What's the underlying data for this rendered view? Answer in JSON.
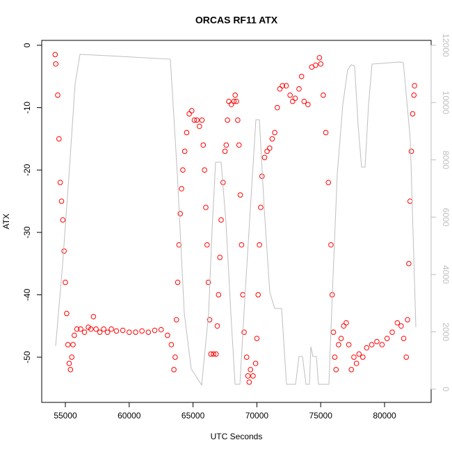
{
  "chart_data": {
    "type": "scatter",
    "title": "ORCAS RF11 ATX",
    "xlabel": "UTC Seconds",
    "ylabel": "ATX",
    "xlim": [
      53148,
      83649
    ],
    "ylim": [
      -57.25,
      0.78
    ],
    "y2lim": [
      -461,
      12170
    ],
    "xticks": [
      55000,
      60000,
      65000,
      70000,
      75000,
      80000
    ],
    "yticks": [
      -50,
      -40,
      -30,
      -20,
      -10,
      0
    ],
    "y2ticks": [
      0,
      2000,
      4000,
      6000,
      8000,
      10000,
      12000
    ],
    "series": [
      {
        "type": "scatter",
        "color": "#ff0000",
        "x": [
          54200,
          54250,
          54400,
          54500,
          54600,
          54700,
          54800,
          54900,
          55000,
          55100,
          55200,
          55300,
          55400,
          55500,
          55600,
          55700,
          55900,
          56200,
          56500,
          56800,
          57000,
          57200,
          57400,
          57700,
          58000,
          58300,
          58600,
          59000,
          59500,
          60000,
          60500,
          61000,
          61500,
          62000,
          62500,
          63000,
          63300,
          63500,
          63600,
          63700,
          63800,
          63900,
          64000,
          64100,
          64200,
          64350,
          64500,
          64700,
          64900,
          65100,
          65300,
          65500,
          65700,
          65800,
          65900,
          66000,
          66100,
          66200,
          66300,
          66400,
          66600,
          66800,
          66900,
          67000,
          67100,
          67200,
          67350,
          67500,
          67600,
          67700,
          67800,
          68000,
          68200,
          68300,
          68400,
          68500,
          68600,
          68700,
          68800,
          68900,
          69000,
          69200,
          69300,
          69400,
          69500,
          69700,
          69900,
          70000,
          70100,
          70200,
          70300,
          70400,
          70600,
          70800,
          71000,
          71200,
          71400,
          71600,
          71800,
          72000,
          72300,
          72600,
          72800,
          73000,
          73300,
          73500,
          73700,
          74000,
          74300,
          74600,
          74900,
          75000,
          75200,
          75400,
          75600,
          75800,
          75900,
          76000,
          76100,
          76200,
          76400,
          76600,
          76800,
          77000,
          77200,
          77400,
          77600,
          77800,
          78000,
          78300,
          78600,
          79000,
          79400,
          79800,
          80200,
          80600,
          81000,
          81300,
          81500,
          81700,
          81800,
          81900,
          82000,
          82100,
          82200,
          82300,
          82350
        ],
        "values": [
          -1.5,
          -3,
          -8,
          -15,
          -22,
          -25,
          -28,
          -33,
          -38,
          -43,
          -48,
          -51,
          -52,
          -50,
          -48,
          -46.5,
          -45.5,
          -45.5,
          -46,
          -45.2,
          -45.5,
          -43.5,
          -45.5,
          -46,
          -45.5,
          -46,
          -45.5,
          -45.8,
          -45.7,
          -46,
          -46,
          -45.8,
          -46,
          -45.7,
          -45.6,
          -46.5,
          -48,
          -52,
          -50,
          -44,
          -38,
          -32,
          -27,
          -23,
          -20,
          -17,
          -14,
          -11,
          -10.5,
          -12,
          -12,
          -13,
          -12,
          -16,
          -20,
          -26,
          -32,
          -38,
          -44,
          -49.5,
          -49.5,
          -49.5,
          -45,
          -40,
          -34,
          -28,
          -22,
          -17,
          -16,
          -12,
          -9,
          -9.5,
          -9,
          -8,
          -9,
          -12,
          -16,
          -24,
          -32,
          -40,
          -46,
          -50,
          -53,
          -54,
          -52,
          -53,
          -51,
          -47,
          -40,
          -32,
          -26,
          -21,
          -18,
          -17,
          -16.5,
          -15,
          -14,
          -10,
          -7,
          -6.5,
          -6.5,
          -8,
          -9,
          -8.5,
          -7,
          -5,
          -9,
          -9.5,
          -3.5,
          -3.2,
          -2,
          -3,
          -8,
          -14,
          -22,
          -32,
          -40,
          -46,
          -50,
          -52,
          -48,
          -47,
          -45,
          -44.5,
          -48,
          -52,
          -50,
          -51,
          -49.5,
          -50,
          -48.5,
          -48,
          -47.5,
          -48,
          -47,
          -46,
          -44.5,
          -45,
          -47,
          -50,
          -44,
          -35,
          -25,
          -17,
          -11,
          -8,
          -6.5
        ]
      },
      {
        "type": "line",
        "axis": "y2",
        "color": "#bebebe",
        "x": [
          54237,
          54782,
          55327,
          55763,
          56144,
          58322,
          63224,
          63769,
          64314,
          64858,
          65675,
          66220,
          66492,
          66765,
          67200,
          67582,
          67963,
          68290,
          68671,
          69052,
          69488,
          69924,
          70196,
          70577,
          71013,
          71394,
          71939,
          72320,
          73028,
          73300,
          73572,
          73845,
          74117,
          74226,
          74390,
          74662,
          74825,
          75642,
          75915,
          76296,
          76732,
          77113,
          77385,
          77658,
          77930,
          78202,
          78474,
          78747,
          79019,
          81198,
          81472,
          82016,
          82452
        ],
        "values": [
          1506,
          4348,
          7750,
          10663,
          11683,
          11635,
          11513,
          7506,
          2648,
          705,
          146,
          2648,
          5562,
          7919,
          7919,
          5806,
          2648,
          170,
          170,
          3134,
          6291,
          9400,
          9400,
          6291,
          3377,
          2818,
          2818,
          170,
          170,
          1142,
          1142,
          170,
          170,
          1482,
          1142,
          1142,
          170,
          170,
          3377,
          7506,
          9935,
          11149,
          11319,
          11271,
          9206,
          7749,
          7749,
          9935,
          11343,
          11416,
          11392,
          8720,
          2162
        ]
      }
    ]
  }
}
